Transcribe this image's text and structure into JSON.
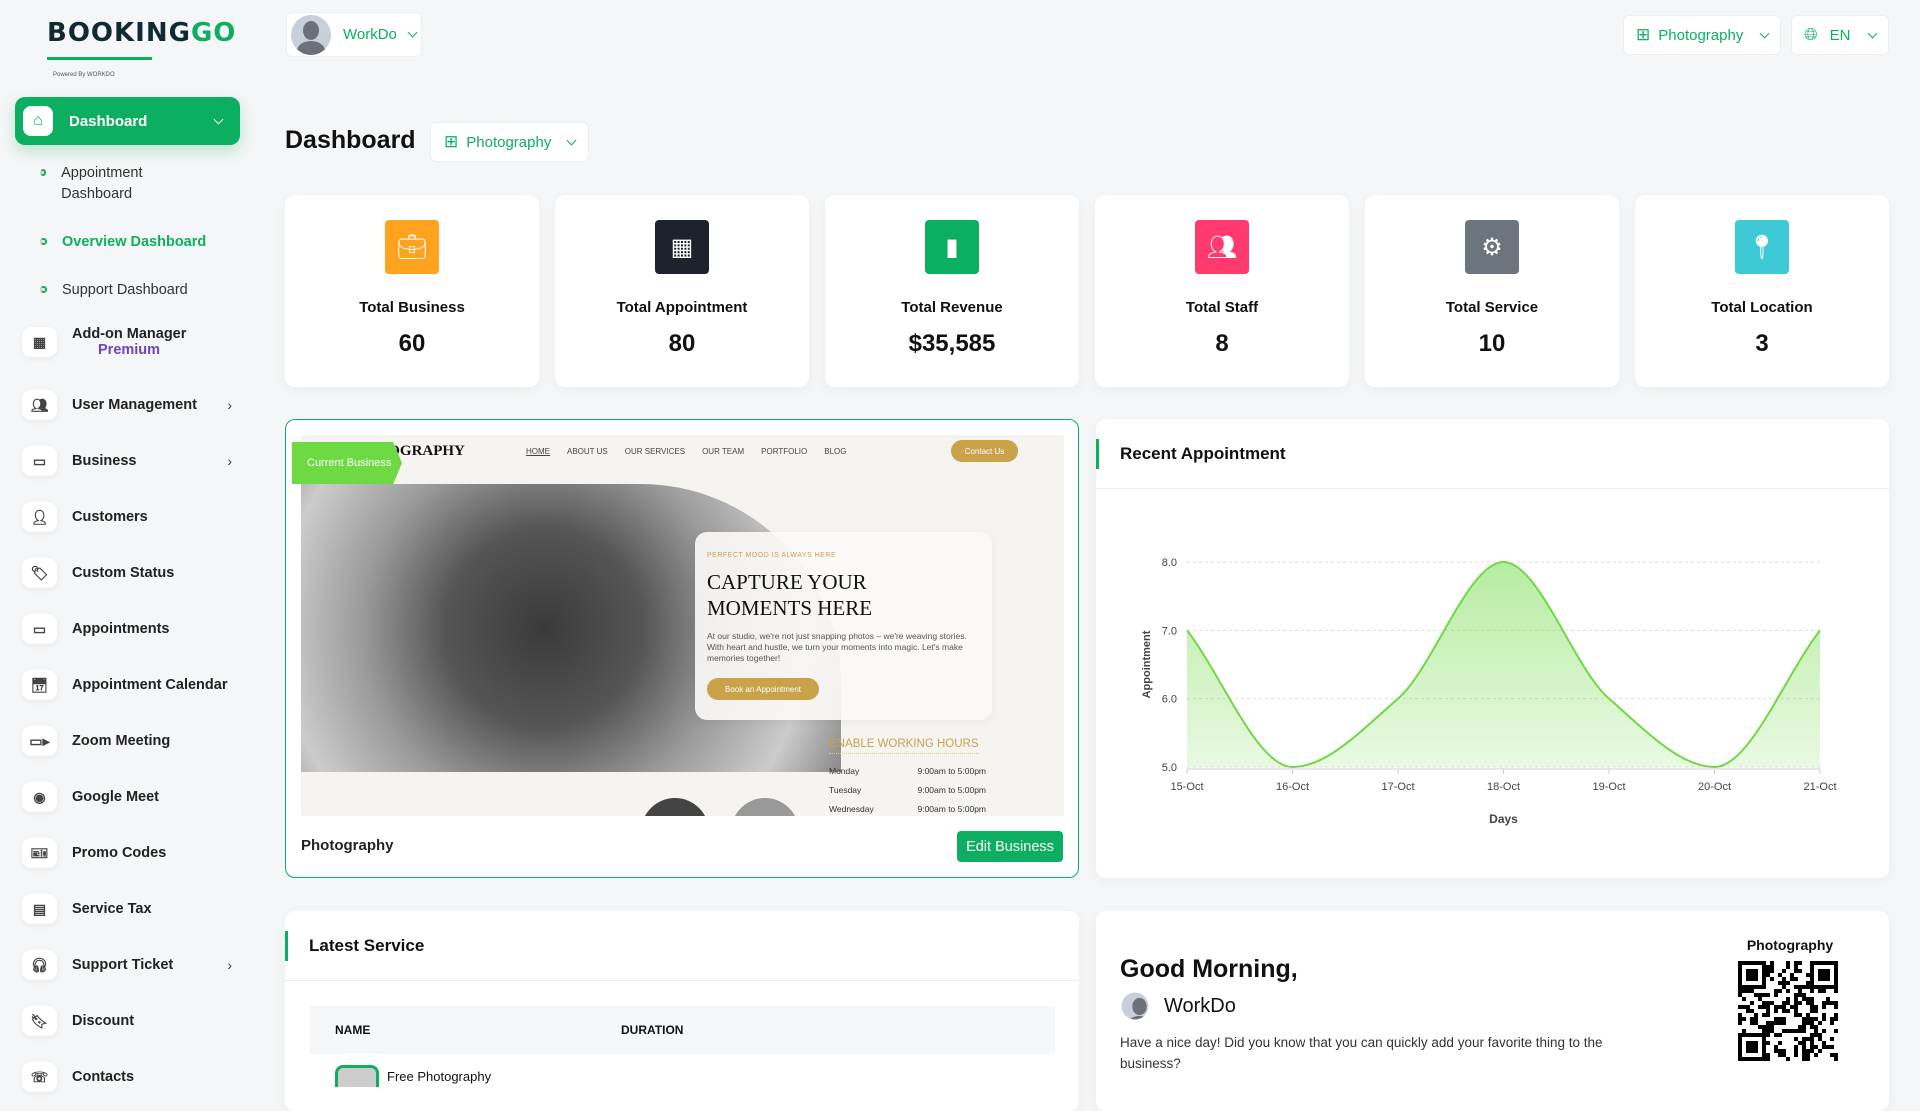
{
  "brand": {
    "logo_text_dark": "BOOKING",
    "logo_text_green": "GO",
    "logo_sub": "Powered By WORKDO"
  },
  "header": {
    "user_name": "WorkDo",
    "business_select": "Photography",
    "language": "EN"
  },
  "colors": {
    "primary": "#0caf60",
    "premium": "#6f42c1",
    "chart_line": "#6fd943"
  },
  "sidebar": {
    "active": {
      "label": "Dashboard",
      "icon": "home-icon"
    },
    "sub_items": [
      {
        "label": "Appointment Dashboard"
      },
      {
        "label": "Overview Dashboard",
        "active": true
      },
      {
        "label": "Support Dashboard"
      }
    ],
    "items": [
      {
        "label": "Add-on Manager",
        "badge": "Premium",
        "icon": "grid-icon"
      },
      {
        "label": "User Management",
        "icon": "users-icon",
        "has_children": true
      },
      {
        "label": "Business",
        "icon": "card-icon",
        "has_children": true
      },
      {
        "label": "Customers",
        "icon": "user-icon"
      },
      {
        "label": "Custom Status",
        "icon": "tag-icon"
      },
      {
        "label": "Appointments",
        "icon": "card-icon"
      },
      {
        "label": "Appointment Calendar",
        "icon": "calendar-icon"
      },
      {
        "label": "Zoom Meeting",
        "icon": "video-icon"
      },
      {
        "label": "Google Meet",
        "icon": "webcam-icon"
      },
      {
        "label": "Promo Codes",
        "icon": "ticket-icon"
      },
      {
        "label": "Service Tax",
        "icon": "receipt-icon"
      },
      {
        "label": "Support Ticket",
        "icon": "headset-icon",
        "has_children": true
      },
      {
        "label": "Discount",
        "icon": "bookmark-icon"
      },
      {
        "label": "Contacts",
        "icon": "contacts-icon"
      }
    ]
  },
  "page": {
    "title": "Dashboard",
    "business_select": "Photography"
  },
  "stats": [
    {
      "label": "Total Business",
      "value": "60",
      "color": "#ffa21d",
      "icon": "briefcase-icon"
    },
    {
      "label": "Total Appointment",
      "value": "80",
      "color": "#1e222c",
      "icon": "calendar-clock-icon"
    },
    {
      "label": "Total Revenue",
      "value": "$35,585",
      "color": "#0caf60",
      "icon": "revenue-chart-icon"
    },
    {
      "label": "Total Staff",
      "value": "8",
      "color": "#ff3a6e",
      "icon": "staff-icon"
    },
    {
      "label": "Total Service",
      "value": "10",
      "color": "#6c757d",
      "icon": "service-gear-icon"
    },
    {
      "label": "Total Location",
      "value": "3",
      "color": "#3ec9d6",
      "icon": "location-pin-icon"
    }
  ],
  "business_card": {
    "ribbon": "Current Business",
    "name": "Photography",
    "edit_label": "Edit Business",
    "preview": {
      "site_title": "PHOTOGRAPHY",
      "nav": [
        "HOME",
        "ABOUT US",
        "OUR SERVICES",
        "OUR TEAM",
        "PORTFOLIO",
        "BLOG"
      ],
      "contact": "Contact Us",
      "tagline": "PERFECT MOOD IS ALWAYS HERE",
      "headline1": "CAPTURE YOUR",
      "headline2": "MOMENTS HERE",
      "body": "At our studio, we're not just snapping photos – we're weaving stories. With heart and hustle, we turn your moments into magic. Let's make memories together!",
      "book": "Book an Appointment",
      "hours_title": "ENABLE WORKING HOURS",
      "hours": [
        {
          "day": "Monday",
          "time": "9:00am to 5:00pm"
        },
        {
          "day": "Tuesday",
          "time": "9:00am to 5:00pm"
        },
        {
          "day": "Wednesday",
          "time": "9:00am to 5:00pm"
        }
      ]
    }
  },
  "recent": {
    "title": "Recent Appointment"
  },
  "chart_data": {
    "type": "area",
    "x": [
      "15-Oct",
      "16-Oct",
      "17-Oct",
      "18-Oct",
      "19-Oct",
      "20-Oct",
      "21-Oct"
    ],
    "values": [
      7,
      5,
      6,
      8,
      6,
      5,
      7
    ],
    "xlabel": "Days",
    "ylabel": "Appointment",
    "ylim": [
      5,
      8
    ],
    "yticks": [
      "5.0",
      "6.0",
      "7.0",
      "8.0"
    ],
    "grid": true
  },
  "latest_service": {
    "title": "Latest Service",
    "columns": [
      "NAME",
      "DURATION"
    ],
    "rows": [
      {
        "name": "Free Photography"
      }
    ]
  },
  "greeting": {
    "title": "Good Morning,",
    "user": "WorkDo",
    "text": "Have a nice day! Did you know that you can quickly add your favorite thing to the business?",
    "qr_label": "Photography"
  }
}
